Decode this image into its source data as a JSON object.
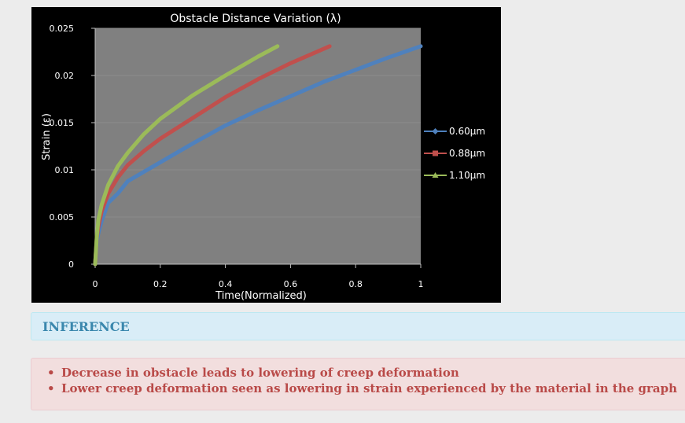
{
  "chart_data": {
    "type": "line",
    "title": "Obstacle Distance Variation (λ)",
    "xlabel": "Time(Normalized)",
    "ylabel": "Strain (ε)",
    "xlim": [
      0,
      1
    ],
    "ylim": [
      0,
      0.025
    ],
    "xticks": [
      "0",
      "0.2",
      "0.4",
      "0.6",
      "0.8",
      "1"
    ],
    "yticks": [
      "0",
      "0.005",
      "0.01",
      "0.015",
      "0.02",
      "0.025"
    ],
    "grid": true,
    "legend_position": "right",
    "plot_background": "#808080",
    "series": [
      {
        "name": "0.60μm",
        "color": "#4f81bd",
        "x": [
          0,
          0.005,
          0.01,
          0.02,
          0.04,
          0.07,
          0.1,
          0.15,
          0.2,
          0.3,
          0.4,
          0.5,
          0.6,
          0.7,
          0.8,
          0.9,
          1.0
        ],
        "y": [
          0,
          0.0024,
          0.0033,
          0.0046,
          0.0065,
          0.0075,
          0.0088,
          0.0098,
          0.0108,
          0.0128,
          0.0147,
          0.0163,
          0.0178,
          0.0193,
          0.0206,
          0.0219,
          0.0231
        ]
      },
      {
        "name": "0.88μm",
        "color": "#c0504d",
        "x": [
          0,
          0.005,
          0.01,
          0.02,
          0.04,
          0.07,
          0.1,
          0.15,
          0.2,
          0.3,
          0.4,
          0.5,
          0.6,
          0.7,
          0.72
        ],
        "y": [
          0,
          0.0028,
          0.004,
          0.0056,
          0.0075,
          0.0092,
          0.0105,
          0.012,
          0.0133,
          0.0155,
          0.0177,
          0.0196,
          0.0213,
          0.0228,
          0.0231
        ]
      },
      {
        "name": "1.10μm",
        "color": "#9bbb59",
        "x": [
          0,
          0.005,
          0.01,
          0.02,
          0.04,
          0.07,
          0.1,
          0.15,
          0.2,
          0.3,
          0.4,
          0.5,
          0.56
        ],
        "y": [
          0,
          0.003,
          0.0047,
          0.0063,
          0.0084,
          0.0104,
          0.0118,
          0.0138,
          0.0154,
          0.0179,
          0.02,
          0.022,
          0.0231
        ]
      }
    ]
  },
  "inference": {
    "heading": "INFERENCE",
    "bullet": "•",
    "points": [
      "Decrease in obstacle leads to lowering of creep deformation",
      "Lower creep deformation seen as lowering in strain experienced by the material in the graph"
    ]
  }
}
